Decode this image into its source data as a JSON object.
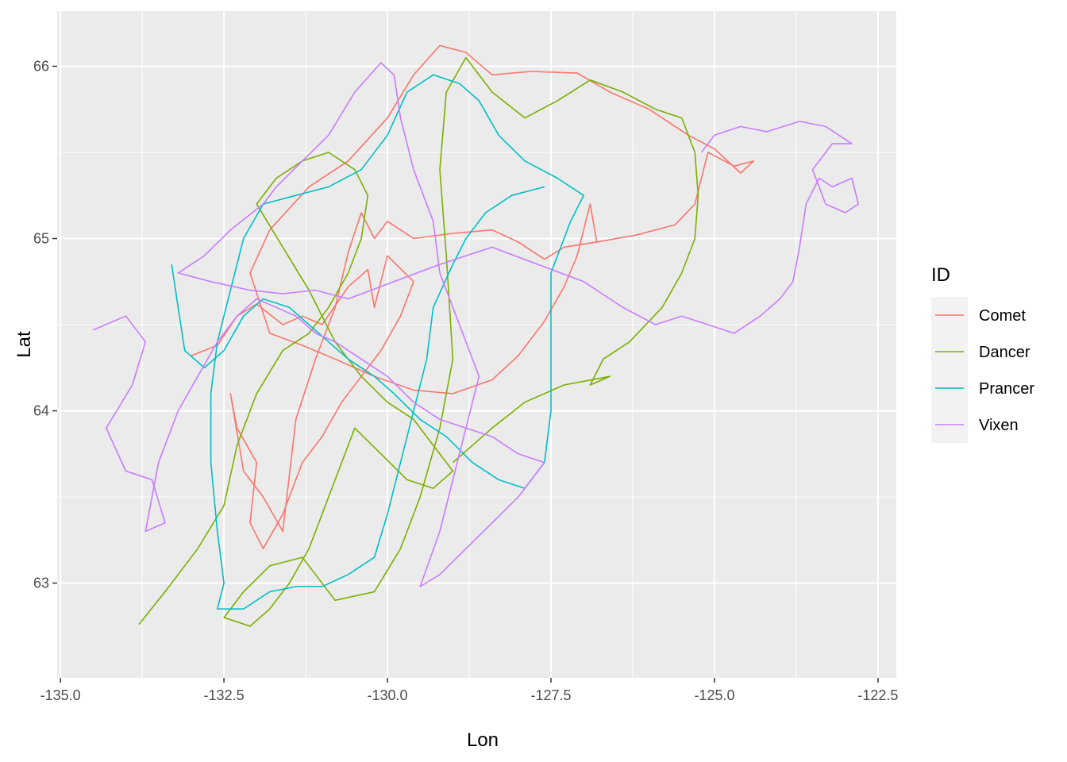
{
  "chart_data": {
    "type": "line",
    "xlabel": "Lon",
    "ylabel": "Lat",
    "xlim": [
      -135.05,
      -122.22
    ],
    "ylim": [
      62.45,
      66.32
    ],
    "x_ticks": [
      -135.0,
      -132.5,
      -130.0,
      -127.5,
      -125.0,
      -122.5
    ],
    "x_tick_labels": [
      "-135.0",
      "-132.5",
      "-130.0",
      "-127.5",
      "-125.0",
      "-122.5"
    ],
    "y_ticks": [
      63,
      64,
      65,
      66
    ],
    "y_tick_labels": [
      "63",
      "64",
      "65",
      "66"
    ],
    "grid": true,
    "legend": {
      "title": "ID",
      "position": "right"
    },
    "series": [
      {
        "name": "Comet",
        "color": "#F8766D",
        "points": [
          [
            -133.0,
            64.32
          ],
          [
            -132.6,
            64.38
          ],
          [
            -132.3,
            64.55
          ],
          [
            -132.0,
            64.62
          ],
          [
            -131.6,
            64.5
          ],
          [
            -131.3,
            64.55
          ],
          [
            -131.0,
            64.5
          ],
          [
            -130.6,
            64.72
          ],
          [
            -130.3,
            64.82
          ],
          [
            -130.2,
            64.6
          ],
          [
            -130.0,
            64.9
          ],
          [
            -129.6,
            64.75
          ],
          [
            -129.8,
            64.55
          ],
          [
            -130.1,
            64.35
          ],
          [
            -130.4,
            64.2
          ],
          [
            -130.7,
            64.05
          ],
          [
            -131.0,
            63.85
          ],
          [
            -131.3,
            63.7
          ],
          [
            -131.6,
            63.4
          ],
          [
            -131.9,
            63.2
          ],
          [
            -132.1,
            63.35
          ],
          [
            -132.0,
            63.7
          ],
          [
            -132.3,
            63.9
          ],
          [
            -132.4,
            64.1
          ],
          [
            -132.2,
            63.65
          ],
          [
            -131.9,
            63.5
          ],
          [
            -131.6,
            63.3
          ],
          [
            -131.4,
            63.95
          ],
          [
            -131.1,
            64.3
          ],
          [
            -130.8,
            64.6
          ],
          [
            -130.6,
            64.92
          ],
          [
            -130.4,
            65.15
          ],
          [
            -130.2,
            65.0
          ],
          [
            -130.0,
            65.1
          ],
          [
            -129.6,
            65.0
          ],
          [
            -129.0,
            65.03
          ],
          [
            -128.4,
            65.05
          ],
          [
            -128.0,
            64.98
          ],
          [
            -127.6,
            64.88
          ],
          [
            -127.3,
            64.95
          ],
          [
            -126.8,
            64.98
          ],
          [
            -126.2,
            65.02
          ],
          [
            -125.6,
            65.08
          ],
          [
            -125.3,
            65.2
          ],
          [
            -125.1,
            65.5
          ],
          [
            -124.7,
            65.42
          ],
          [
            -124.4,
            65.45
          ],
          [
            -124.6,
            65.38
          ],
          [
            -125.0,
            65.52
          ],
          [
            -125.4,
            65.6
          ],
          [
            -126.0,
            65.75
          ],
          [
            -126.6,
            65.85
          ],
          [
            -127.1,
            65.96
          ],
          [
            -127.8,
            65.97
          ],
          [
            -128.4,
            65.95
          ],
          [
            -128.8,
            66.08
          ],
          [
            -129.2,
            66.12
          ],
          [
            -129.6,
            65.95
          ],
          [
            -130.0,
            65.7
          ],
          [
            -130.6,
            65.45
          ],
          [
            -131.2,
            65.3
          ],
          [
            -131.8,
            65.05
          ],
          [
            -132.1,
            64.8
          ],
          [
            -131.8,
            64.45
          ],
          [
            -131.3,
            64.38
          ],
          [
            -130.8,
            64.3
          ],
          [
            -130.2,
            64.2
          ],
          [
            -129.6,
            64.12
          ],
          [
            -129.0,
            64.1
          ],
          [
            -128.4,
            64.18
          ],
          [
            -128.0,
            64.32
          ],
          [
            -127.6,
            64.52
          ],
          [
            -127.3,
            64.72
          ],
          [
            -127.1,
            64.9
          ],
          [
            -126.9,
            65.2
          ],
          [
            -126.8,
            64.98
          ]
        ]
      },
      {
        "name": "Dancer",
        "color": "#7CAE00",
        "points": [
          [
            -133.8,
            62.76
          ],
          [
            -133.4,
            62.95
          ],
          [
            -132.9,
            63.2
          ],
          [
            -132.5,
            63.45
          ],
          [
            -132.3,
            63.8
          ],
          [
            -132.0,
            64.1
          ],
          [
            -131.6,
            64.35
          ],
          [
            -131.2,
            64.45
          ],
          [
            -130.9,
            64.6
          ],
          [
            -130.6,
            64.8
          ],
          [
            -130.4,
            65.0
          ],
          [
            -130.3,
            65.25
          ],
          [
            -130.5,
            65.4
          ],
          [
            -130.9,
            65.5
          ],
          [
            -131.3,
            65.45
          ],
          [
            -131.7,
            65.35
          ],
          [
            -132.0,
            65.2
          ],
          [
            -131.6,
            64.95
          ],
          [
            -131.2,
            64.7
          ],
          [
            -130.8,
            64.4
          ],
          [
            -130.4,
            64.2
          ],
          [
            -130.0,
            64.05
          ],
          [
            -129.6,
            63.95
          ],
          [
            -129.3,
            63.8
          ],
          [
            -129.0,
            63.65
          ],
          [
            -129.3,
            63.55
          ],
          [
            -129.7,
            63.6
          ],
          [
            -130.1,
            63.75
          ],
          [
            -130.5,
            63.9
          ],
          [
            -130.9,
            63.5
          ],
          [
            -131.2,
            63.2
          ],
          [
            -131.5,
            63.0
          ],
          [
            -131.8,
            62.85
          ],
          [
            -132.1,
            62.75
          ],
          [
            -132.5,
            62.8
          ],
          [
            -132.2,
            62.95
          ],
          [
            -131.8,
            63.1
          ],
          [
            -131.3,
            63.15
          ],
          [
            -130.8,
            62.9
          ],
          [
            -130.2,
            62.95
          ],
          [
            -129.8,
            63.2
          ],
          [
            -129.5,
            63.5
          ],
          [
            -129.2,
            63.9
          ],
          [
            -129.0,
            64.3
          ],
          [
            -129.1,
            64.9
          ],
          [
            -129.2,
            65.4
          ],
          [
            -129.1,
            65.85
          ],
          [
            -128.8,
            66.05
          ],
          [
            -128.4,
            65.85
          ],
          [
            -127.9,
            65.7
          ],
          [
            -127.4,
            65.8
          ],
          [
            -126.9,
            65.92
          ],
          [
            -126.4,
            65.85
          ],
          [
            -125.9,
            65.75
          ],
          [
            -125.5,
            65.7
          ],
          [
            -125.3,
            65.5
          ],
          [
            -125.25,
            65.25
          ],
          [
            -125.3,
            65.0
          ],
          [
            -125.5,
            64.8
          ],
          [
            -125.8,
            64.6
          ],
          [
            -126.3,
            64.4
          ],
          [
            -126.7,
            64.3
          ],
          [
            -126.9,
            64.15
          ],
          [
            -126.6,
            64.2
          ],
          [
            -127.3,
            64.15
          ],
          [
            -127.9,
            64.05
          ],
          [
            -128.4,
            63.9
          ],
          [
            -129.0,
            63.7
          ]
        ]
      },
      {
        "name": "Prancer",
        "color": "#00BFC4",
        "points": [
          [
            -133.3,
            64.85
          ],
          [
            -133.2,
            64.6
          ],
          [
            -133.1,
            64.35
          ],
          [
            -132.8,
            64.25
          ],
          [
            -132.5,
            64.35
          ],
          [
            -132.2,
            64.55
          ],
          [
            -131.9,
            64.65
          ],
          [
            -131.5,
            64.6
          ],
          [
            -131.2,
            64.5
          ],
          [
            -130.9,
            64.4
          ],
          [
            -130.6,
            64.3
          ],
          [
            -130.2,
            64.2
          ],
          [
            -129.9,
            64.1
          ],
          [
            -129.5,
            63.95
          ],
          [
            -129.1,
            63.85
          ],
          [
            -128.7,
            63.7
          ],
          [
            -128.3,
            63.6
          ],
          [
            -127.9,
            63.55
          ],
          [
            -127.6,
            63.7
          ],
          [
            -127.5,
            64.0
          ],
          [
            -127.5,
            64.4
          ],
          [
            -127.5,
            64.8
          ],
          [
            -127.2,
            65.1
          ],
          [
            -127.0,
            65.25
          ],
          [
            -127.4,
            65.35
          ],
          [
            -127.9,
            65.45
          ],
          [
            -128.3,
            65.6
          ],
          [
            -128.6,
            65.8
          ],
          [
            -128.9,
            65.9
          ],
          [
            -129.3,
            65.95
          ],
          [
            -129.7,
            65.85
          ],
          [
            -130.0,
            65.6
          ],
          [
            -130.4,
            65.4
          ],
          [
            -130.9,
            65.3
          ],
          [
            -131.4,
            65.25
          ],
          [
            -131.9,
            65.2
          ],
          [
            -132.2,
            65.0
          ],
          [
            -132.4,
            64.7
          ],
          [
            -132.6,
            64.4
          ],
          [
            -132.7,
            64.1
          ],
          [
            -132.7,
            63.7
          ],
          [
            -132.6,
            63.3
          ],
          [
            -132.5,
            63.0
          ],
          [
            -132.6,
            62.85
          ],
          [
            -132.2,
            62.85
          ],
          [
            -131.8,
            62.95
          ],
          [
            -131.4,
            62.98
          ],
          [
            -131.0,
            62.98
          ],
          [
            -130.6,
            63.05
          ],
          [
            -130.2,
            63.15
          ],
          [
            -130.0,
            63.4
          ],
          [
            -129.8,
            63.7
          ],
          [
            -129.6,
            64.0
          ],
          [
            -129.4,
            64.3
          ],
          [
            -129.3,
            64.6
          ],
          [
            -129.0,
            64.85
          ],
          [
            -128.8,
            65.0
          ],
          [
            -128.5,
            65.15
          ],
          [
            -128.1,
            65.25
          ],
          [
            -127.6,
            65.3
          ]
        ]
      },
      {
        "name": "Vixen",
        "color": "#C77CFF",
        "points": [
          [
            -134.5,
            64.47
          ],
          [
            -134.0,
            64.55
          ],
          [
            -133.7,
            64.4
          ],
          [
            -133.9,
            64.15
          ],
          [
            -134.3,
            63.9
          ],
          [
            -134.0,
            63.65
          ],
          [
            -133.6,
            63.6
          ],
          [
            -133.4,
            63.35
          ],
          [
            -133.7,
            63.3
          ],
          [
            -133.5,
            63.7
          ],
          [
            -133.2,
            64.0
          ],
          [
            -132.9,
            64.2
          ],
          [
            -132.6,
            64.4
          ],
          [
            -132.3,
            64.55
          ],
          [
            -132.0,
            64.65
          ],
          [
            -131.7,
            64.6
          ],
          [
            -131.4,
            64.55
          ],
          [
            -131.1,
            64.45
          ],
          [
            -130.8,
            64.4
          ],
          [
            -130.4,
            64.3
          ],
          [
            -130.0,
            64.2
          ],
          [
            -129.6,
            64.05
          ],
          [
            -129.2,
            63.95
          ],
          [
            -128.8,
            63.9
          ],
          [
            -128.4,
            63.85
          ],
          [
            -128.0,
            63.75
          ],
          [
            -127.6,
            63.7
          ],
          [
            -128.0,
            63.5
          ],
          [
            -128.4,
            63.35
          ],
          [
            -128.8,
            63.2
          ],
          [
            -129.2,
            63.05
          ],
          [
            -129.5,
            62.98
          ],
          [
            -129.2,
            63.3
          ],
          [
            -129.0,
            63.6
          ],
          [
            -128.8,
            63.9
          ],
          [
            -128.6,
            64.2
          ],
          [
            -128.9,
            64.5
          ],
          [
            -129.2,
            64.8
          ],
          [
            -129.3,
            65.1
          ],
          [
            -129.6,
            65.4
          ],
          [
            -129.8,
            65.7
          ],
          [
            -129.9,
            65.95
          ],
          [
            -130.1,
            66.02
          ],
          [
            -130.5,
            65.85
          ],
          [
            -130.9,
            65.6
          ],
          [
            -131.3,
            65.45
          ],
          [
            -131.7,
            65.3
          ],
          [
            -131.9,
            65.2
          ],
          [
            -132.4,
            65.05
          ],
          [
            -132.8,
            64.9
          ],
          [
            -133.2,
            64.8
          ],
          [
            -132.7,
            64.75
          ],
          [
            -132.1,
            64.7
          ],
          [
            -131.6,
            64.68
          ],
          [
            -131.1,
            64.7
          ],
          [
            -130.6,
            64.65
          ],
          [
            -129.9,
            64.75
          ],
          [
            -129.2,
            64.85
          ],
          [
            -128.4,
            64.95
          ],
          [
            -127.7,
            64.85
          ],
          [
            -127.0,
            64.75
          ],
          [
            -126.4,
            64.6
          ],
          [
            -125.9,
            64.5
          ],
          [
            -125.5,
            64.55
          ],
          [
            -125.1,
            64.5
          ],
          [
            -124.7,
            64.45
          ],
          [
            -124.3,
            64.55
          ],
          [
            -124.0,
            64.65
          ],
          [
            -123.8,
            64.75
          ],
          [
            -123.7,
            64.95
          ],
          [
            -123.6,
            65.2
          ],
          [
            -123.4,
            65.35
          ],
          [
            -123.2,
            65.3
          ],
          [
            -122.9,
            65.35
          ],
          [
            -122.8,
            65.2
          ],
          [
            -123.0,
            65.15
          ],
          [
            -123.3,
            65.2
          ],
          [
            -123.5,
            65.4
          ],
          [
            -123.2,
            65.55
          ],
          [
            -122.9,
            65.55
          ],
          [
            -123.3,
            65.65
          ],
          [
            -123.7,
            65.68
          ],
          [
            -124.2,
            65.62
          ],
          [
            -124.6,
            65.65
          ],
          [
            -125.0,
            65.6
          ],
          [
            -125.2,
            65.5
          ]
        ]
      }
    ]
  }
}
